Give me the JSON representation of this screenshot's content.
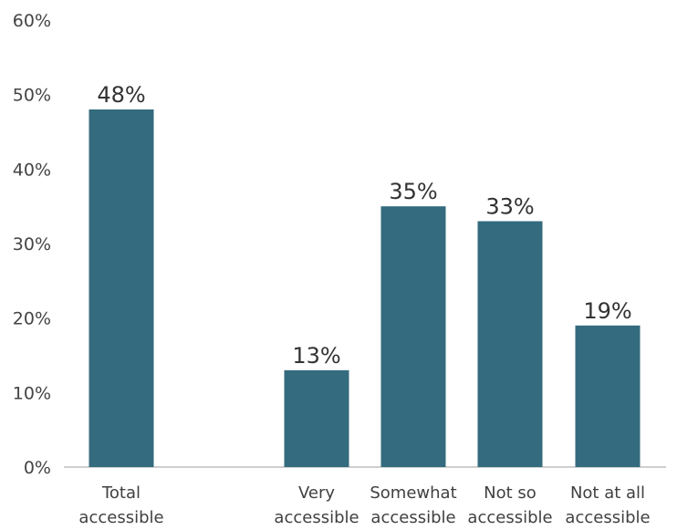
{
  "chart_data": {
    "type": "bar",
    "categories": [
      [
        "Total",
        "accessible"
      ],
      [
        "Very",
        "accessible"
      ],
      [
        "Somewhat",
        "accessible"
      ],
      [
        "Not so",
        "accessible"
      ],
      [
        "Not at all",
        "accessible"
      ]
    ],
    "values": [
      48,
      13,
      35,
      33,
      19
    ],
    "data_labels": [
      "48%",
      "13%",
      "35%",
      "33%",
      "19%"
    ],
    "y_ticks": [
      "0%",
      "10%",
      "20%",
      "30%",
      "40%",
      "50%",
      "60%"
    ],
    "ylim": [
      0,
      60
    ],
    "grid": false,
    "legend": "none",
    "bar_color": "#346b7e"
  }
}
